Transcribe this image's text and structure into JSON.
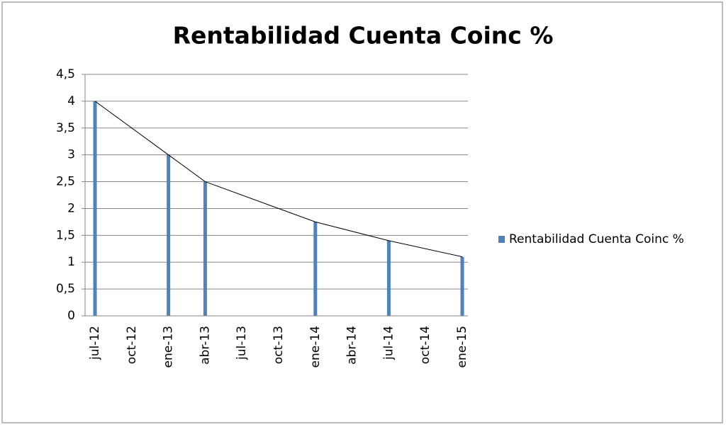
{
  "chart_data": {
    "type": "bar",
    "title": "Rentabilidad Cuenta Coinc %",
    "x": [
      "jul-12",
      "ene-13",
      "abr-13",
      "ene-14",
      "jul-14",
      "ene-15"
    ],
    "series": [
      {
        "name": "Rentabilidad Cuenta Coinc %",
        "color": "#4f81bd",
        "values": [
          4,
          3,
          2.5,
          1.75,
          1.4,
          1.1
        ]
      }
    ],
    "line_color": "#000000",
    "xticks": [
      "jul-12",
      "oct-12",
      "ene-13",
      "abr-13",
      "jul-13",
      "oct-13",
      "ene-14",
      "abr-14",
      "jul-14",
      "oct-14",
      "ene-15"
    ],
    "ylim": [
      0,
      4.5
    ],
    "yticks": [
      0,
      {
        "value": 0.5,
        "label": "0,5"
      },
      1,
      {
        "value": 1.5,
        "label": "1,5"
      },
      2,
      {
        "value": 2.5,
        "label": "2,5"
      },
      3,
      {
        "value": 3.5,
        "label": "3,5"
      },
      4,
      {
        "value": 4.5,
        "label": "4,5"
      }
    ],
    "grid": true,
    "legend": "right"
  }
}
